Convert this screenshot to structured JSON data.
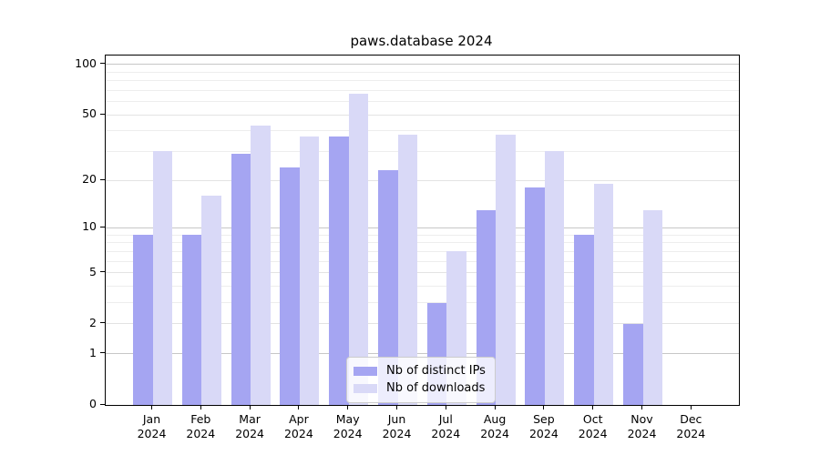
{
  "title": "paws.database 2024",
  "chart_data": {
    "type": "bar",
    "title": "paws.database 2024",
    "categories": [
      "Jan",
      "Feb",
      "Mar",
      "Apr",
      "May",
      "Jun",
      "Jul",
      "Aug",
      "Sep",
      "Oct",
      "Nov",
      "Dec"
    ],
    "category_year": "2024",
    "series": [
      {
        "name": "Nb of distinct IPs",
        "color": "#a5a5f2",
        "values": [
          9,
          9,
          29,
          24,
          37,
          23,
          3,
          13,
          18,
          9,
          2,
          0
        ]
      },
      {
        "name": "Nb of downloads",
        "color": "#d9d9f7",
        "values": [
          30,
          16,
          43,
          37,
          67,
          38,
          7,
          38,
          30,
          19,
          13,
          0
        ]
      }
    ],
    "yscale": "log1p",
    "ylim": [
      0,
      113
    ],
    "yticks": [
      0,
      1,
      2,
      5,
      10,
      20,
      50,
      100
    ],
    "decade_gridlines": [
      1,
      10,
      100
    ],
    "labeled_minor_gridlines": [
      2,
      5,
      20,
      50
    ],
    "minor_gridlines": [
      3,
      4,
      6,
      7,
      8,
      9,
      30,
      40,
      60,
      70,
      80,
      90
    ],
    "grid": true,
    "legend_position": "lower center",
    "colors": {
      "grid_major": "#c7c7c7",
      "grid_mid": "#e3e3e3",
      "grid_minor": "#ededed",
      "axis": "#000000",
      "legend_border": "#cccccc",
      "text": "#000000"
    }
  }
}
